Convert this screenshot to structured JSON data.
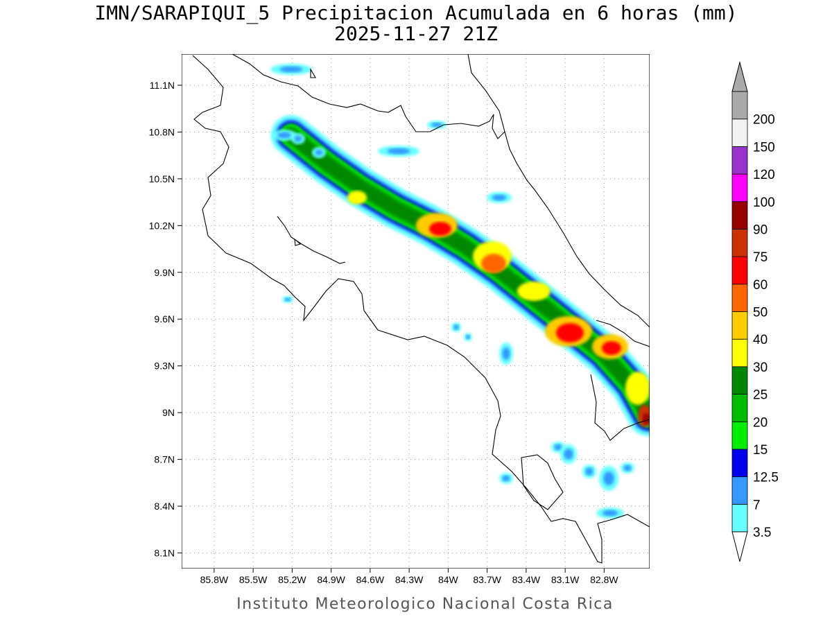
{
  "title": {
    "line1": "IMN/SARAPIQUI_5 Precipitacion Acumulada en 6 horas (mm)",
    "line2": "2025-11-27 21Z"
  },
  "footer": "Instituto Meteorologico Nacional Costa Rica",
  "axes": {
    "lon_range": [
      -86.05,
      -82.45
    ],
    "lat_range": [
      8.0,
      11.3
    ],
    "x_ticks": [
      {
        "value": -85.8,
        "label": "85.8W"
      },
      {
        "value": -85.5,
        "label": "85.5W"
      },
      {
        "value": -85.2,
        "label": "85.2W"
      },
      {
        "value": -84.9,
        "label": "84.9W"
      },
      {
        "value": -84.6,
        "label": "84.6W"
      },
      {
        "value": -84.3,
        "label": "84.3W"
      },
      {
        "value": -84.0,
        "label": "84W"
      },
      {
        "value": -83.7,
        "label": "83.7W"
      },
      {
        "value": -83.4,
        "label": "83.4W"
      },
      {
        "value": -83.1,
        "label": "83.1W"
      },
      {
        "value": -82.8,
        "label": "82.8W"
      }
    ],
    "y_ticks": [
      {
        "value": 11.1,
        "label": "11.1N"
      },
      {
        "value": 10.8,
        "label": "10.8N"
      },
      {
        "value": 10.5,
        "label": "10.5N"
      },
      {
        "value": 10.2,
        "label": "10.2N"
      },
      {
        "value": 9.9,
        "label": "9.9N"
      },
      {
        "value": 9.6,
        "label": "9.6N"
      },
      {
        "value": 9.3,
        "label": "9.3N"
      },
      {
        "value": 9.0,
        "label": "9N"
      },
      {
        "value": 8.7,
        "label": "8.7N"
      },
      {
        "value": 8.4,
        "label": "8.4N"
      },
      {
        "value": 8.1,
        "label": "8.1N"
      }
    ],
    "grid": "dotted"
  },
  "colorbar": {
    "levels": [
      {
        "label": "3.5",
        "color": "#66ffff"
      },
      {
        "label": "7",
        "color": "#3399ff"
      },
      {
        "label": "12.5",
        "color": "#0000ee"
      },
      {
        "label": "15",
        "color": "#00ee00"
      },
      {
        "label": "20",
        "color": "#00bb00"
      },
      {
        "label": "25",
        "color": "#008800"
      },
      {
        "label": "30",
        "color": "#ffff00"
      },
      {
        "label": "40",
        "color": "#ffcc00"
      },
      {
        "label": "50",
        "color": "#ff6600"
      },
      {
        "label": "60",
        "color": "#ff0000"
      },
      {
        "label": "75",
        "color": "#cc3300"
      },
      {
        "label": "90",
        "color": "#990000"
      },
      {
        "label": "100",
        "color": "#ff00ff"
      },
      {
        "label": "120",
        "color": "#9933cc"
      },
      {
        "label": "150",
        "color": "#f2f2f2"
      },
      {
        "label": "200",
        "color": "#aaaaaa"
      }
    ],
    "arrow_top_color": "#aaaaaa",
    "arrow_bottom_color": "#ffffff"
  }
}
